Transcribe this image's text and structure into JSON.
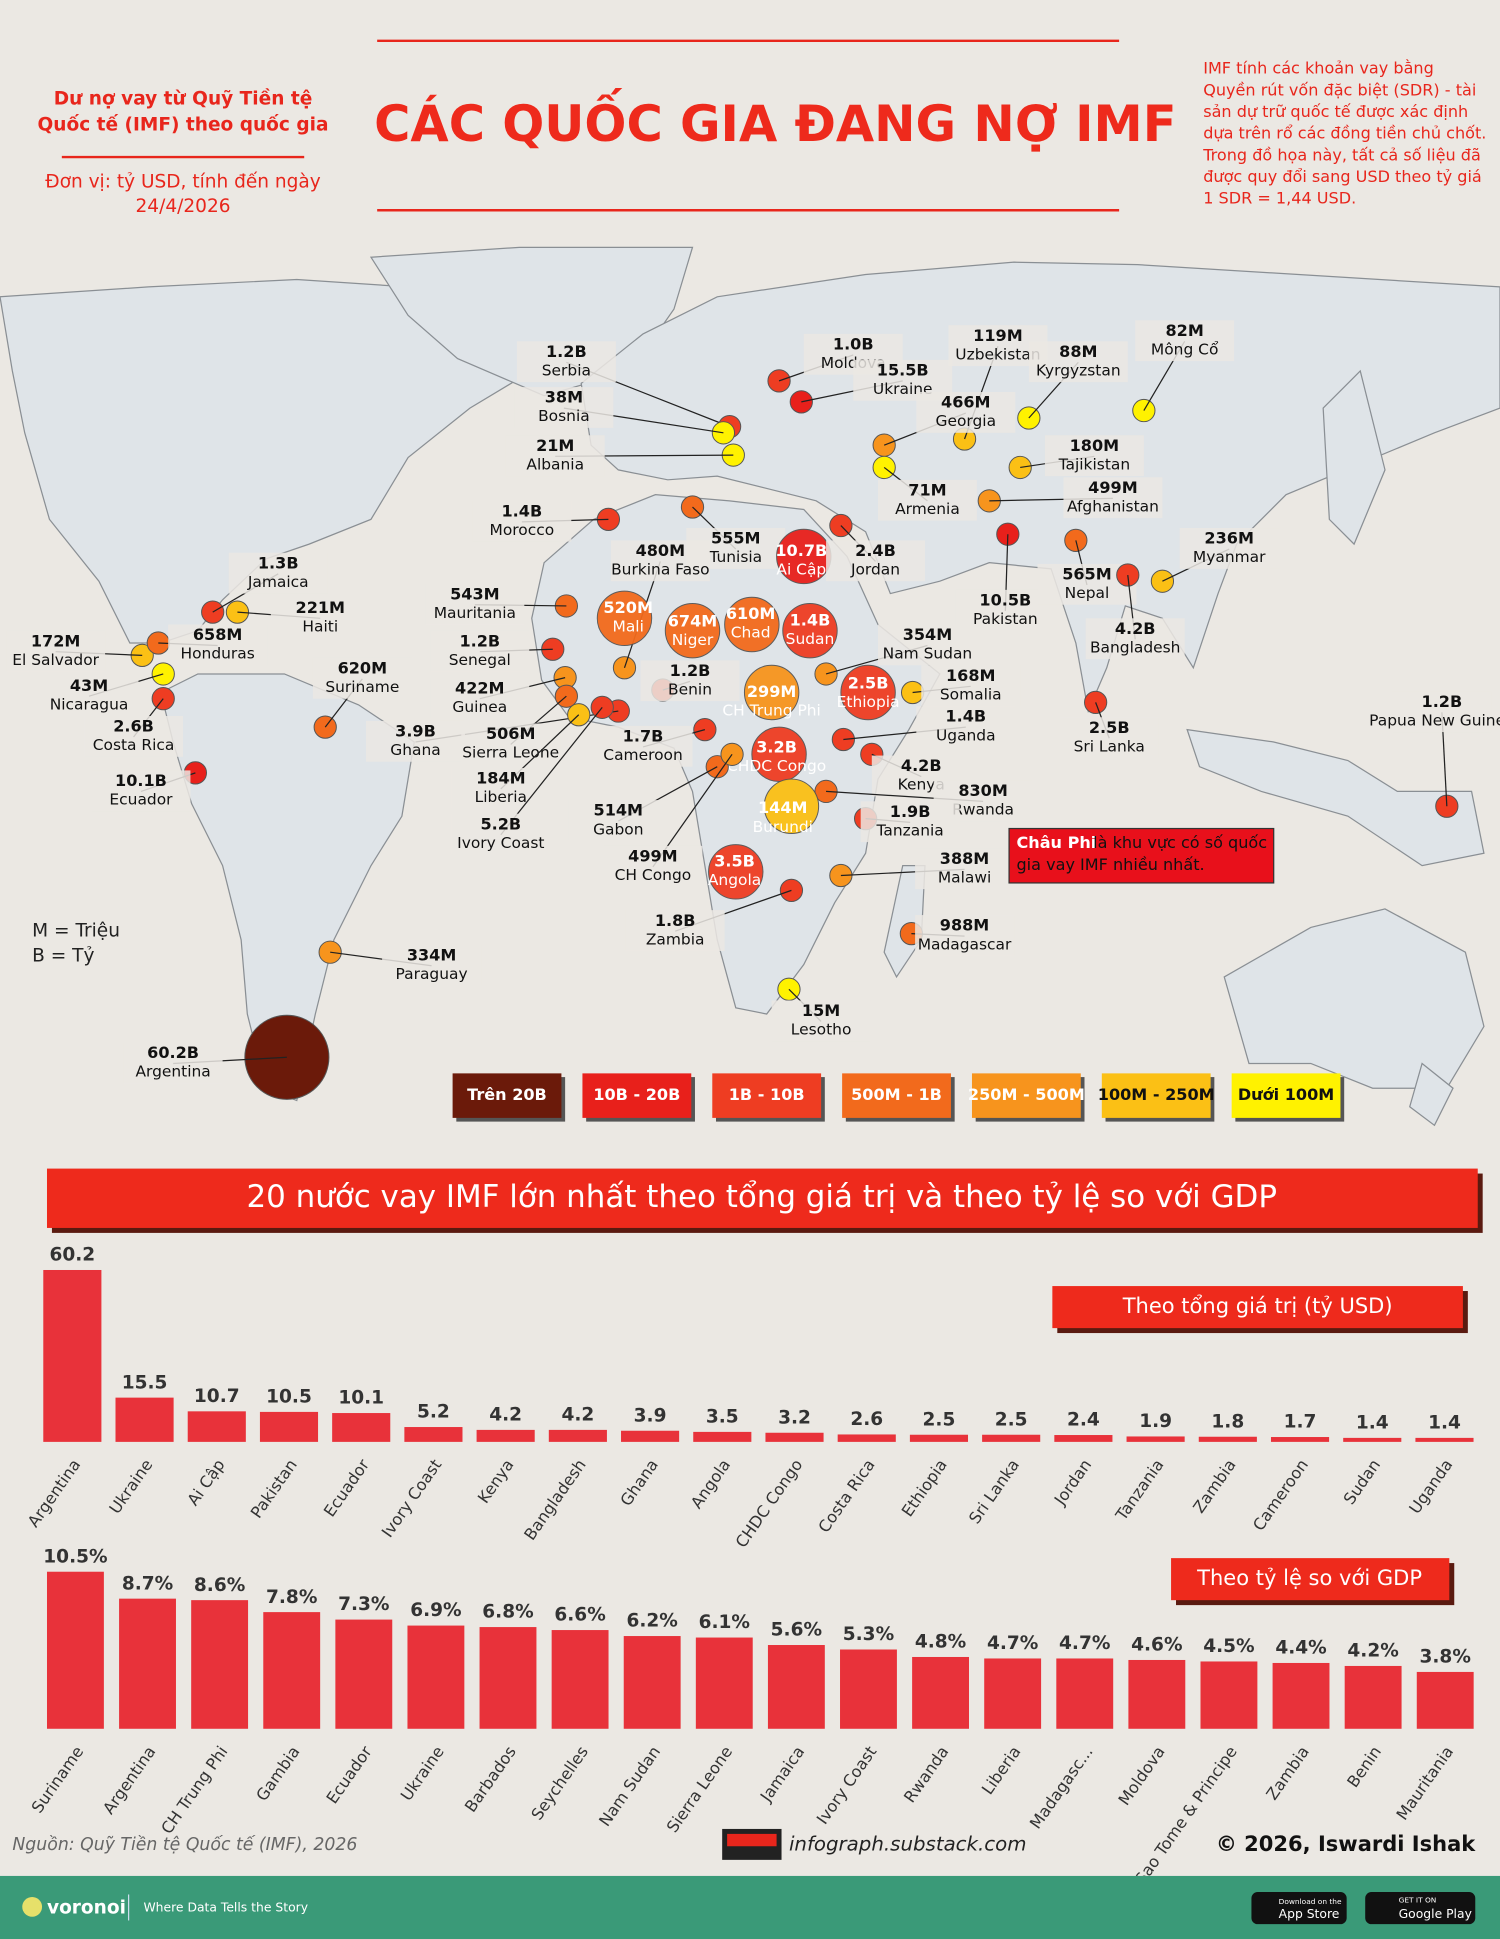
{
  "header": {
    "subtitle": [
      "Dư nợ vay từ Quỹ Tiền tệ",
      "Quốc tế (IMF) theo quốc gia"
    ],
    "unit": [
      "Đơn vị: tỷ USD, tính đến ngày",
      "24/4/2026"
    ],
    "title": "CÁC QUỐC GIA ĐANG NỢ IMF",
    "note": [
      "IMF tính các khoản vay bằng",
      "Quyền rút vốn đặc biệt (SDR) - tài",
      "sản dự trữ quốc tế được xác định",
      "dựa trên rổ các đồng tiền chủ chốt.",
      "Trong đồ họa này, tất cả số liệu đã",
      "được quy đổi sang USD theo tỷ giá",
      "1 SDR = 1,44 USD."
    ]
  },
  "map": {
    "labels": [
      {
        "value": "1.2B",
        "name": "Serbia",
        "color": "#ee3d22"
      },
      {
        "value": "38M",
        "name": "Bosnia",
        "color": "#fff200"
      },
      {
        "value": "21M",
        "name": "Albania",
        "color": "#fff200"
      },
      {
        "value": "1.0B",
        "name": "Moldova",
        "color": "#ee3d22"
      },
      {
        "value": "15.5B",
        "name": "Ukraine",
        "color": "#e8201b"
      },
      {
        "value": "119M",
        "name": "Uzbekistan",
        "color": "#fbc015"
      },
      {
        "value": "88M",
        "name": "Kyrgyzstan",
        "color": "#fff200"
      },
      {
        "value": "82M",
        "name": "Mông Cổ",
        "color": "#fff200"
      },
      {
        "value": "466M",
        "name": "Georgia",
        "color": "#f7941d"
      },
      {
        "value": "180M",
        "name": "Tajikistan",
        "color": "#fbc015"
      },
      {
        "value": "499M",
        "name": "Afghanistan",
        "color": "#f7941d"
      },
      {
        "value": "71M",
        "name": "Armenia",
        "color": "#fff200"
      },
      {
        "value": "1.4B",
        "name": "Morocco",
        "color": "#ee3d22"
      },
      {
        "value": "555M",
        "name": "Tunisia",
        "color": "#f26a1c"
      },
      {
        "value": "480M",
        "name": "Burkina Faso",
        "color": "#f7941d"
      },
      {
        "value": "10.7B",
        "name": "Ai Cập",
        "color": "#e8201b"
      },
      {
        "value": "2.4B",
        "name": "Jordan",
        "color": "#ee3d22"
      },
      {
        "value": "10.5B",
        "name": "Pakistan",
        "color": "#e8201b"
      },
      {
        "value": "565M",
        "name": "Nepal",
        "color": "#f26a1c"
      },
      {
        "value": "236M",
        "name": "Myanmar",
        "color": "#fbc015"
      },
      {
        "value": "4.2B",
        "name": "Bangladesh",
        "color": "#ee3d22"
      },
      {
        "value": "2.5B",
        "name": "Sri Lanka",
        "color": "#ee3d22"
      },
      {
        "value": "1.3B",
        "name": "Jamaica",
        "color": "#ee3d22"
      },
      {
        "value": "221M",
        "name": "Haiti",
        "color": "#fbc015"
      },
      {
        "value": "543M",
        "name": "Mauritania",
        "color": "#f26a1c"
      },
      {
        "value": "520M",
        "name": "Mali",
        "color": "#f26a1c"
      },
      {
        "value": "674M",
        "name": "Niger",
        "color": "#f26a1c"
      },
      {
        "value": "610M",
        "name": "Chad",
        "color": "#f26a1c"
      },
      {
        "value": "1.4B",
        "name": "Sudan",
        "color": "#ee3d22"
      },
      {
        "value": "354M",
        "name": "Nam Sudan",
        "color": "#f7941d"
      },
      {
        "value": "172M",
        "name": "El Salvador",
        "color": "#fbc015"
      },
      {
        "value": "658M",
        "name": "Honduras",
        "color": "#f26a1c"
      },
      {
        "value": "1.2B",
        "name": "Senegal",
        "color": "#ee3d22"
      },
      {
        "value": "1.2B",
        "name": "Benin",
        "color": "#ee3d22"
      },
      {
        "value": "2.5B",
        "name": "Ethiopia",
        "color": "#ee3d22"
      },
      {
        "value": "168M",
        "name": "Somalia",
        "color": "#fbc015"
      },
      {
        "value": "43M",
        "name": "Nicaragua",
        "color": "#fff200"
      },
      {
        "value": "620M",
        "name": "Suriname",
        "color": "#f26a1c"
      },
      {
        "value": "422M",
        "name": "Guinea",
        "color": "#f7941d"
      },
      {
        "value": "299M",
        "name": "CH Trung Phi",
        "color": "#f7941d"
      },
      {
        "value": "1.4B",
        "name": "Uganda",
        "color": "#ee3d22"
      },
      {
        "value": "3.9B",
        "name": "Ghana",
        "color": "#ee3d22"
      },
      {
        "value": "506M",
        "name": "Sierra Leone",
        "color": "#f26a1c"
      },
      {
        "value": "1.7B",
        "name": "Cameroon",
        "color": "#ee3d22"
      },
      {
        "value": "3.2B",
        "name": "CHDC Congo",
        "color": "#ee3d22"
      },
      {
        "value": "4.2B",
        "name": "Kenya",
        "color": "#ee3d22"
      },
      {
        "value": "2.6B",
        "name": "Costa Rica",
        "color": "#ee3d22"
      },
      {
        "value": "184M",
        "name": "Liberia",
        "color": "#fbc015"
      },
      {
        "value": "830M",
        "name": "Rwanda",
        "color": "#f26a1c"
      },
      {
        "value": "10.1B",
        "name": "Ecuador",
        "color": "#e8201b"
      },
      {
        "value": "1.2B",
        "name": "Papua New Guinea",
        "color": "#ee3d22"
      },
      {
        "value": "514M",
        "name": "Gabon",
        "color": "#f26a1c"
      },
      {
        "value": "144M",
        "name": "Burundi",
        "color": "#fbc015"
      },
      {
        "value": "1.9B",
        "name": "Tanzania",
        "color": "#ee3d22"
      },
      {
        "value": "5.2B",
        "name": "Ivory Coast",
        "color": "#ee3d22"
      },
      {
        "value": "499M",
        "name": "CH Congo",
        "color": "#f7941d"
      },
      {
        "value": "3.5B",
        "name": "Angola",
        "color": "#ee3d22"
      },
      {
        "value": "388M",
        "name": "Malawi",
        "color": "#f7941d"
      },
      {
        "value": "1.8B",
        "name": "Zambia",
        "color": "#ee3d22"
      },
      {
        "value": "988M",
        "name": "Madagascar",
        "color": "#f26a1c"
      },
      {
        "value": "334M",
        "name": "Paraguay",
        "color": "#f7941d"
      },
      {
        "value": "60.2B",
        "name": "Argentina",
        "color": "#6b1a0a"
      },
      {
        "value": "15M",
        "name": "Lesotho",
        "color": "#fff200"
      }
    ],
    "unit_notes": [
      "M = Triệu",
      "B = Tỷ"
    ],
    "legend": [
      {
        "label": "Trên 20B",
        "color": "#6b1a0a"
      },
      {
        "label": "10B - 20B",
        "color": "#e8201b"
      },
      {
        "label": "1B - 10B",
        "color": "#ee3d22"
      },
      {
        "label": "500M - 1B",
        "color": "#f26a1c"
      },
      {
        "label": "250M - 500M",
        "color": "#f7941d"
      },
      {
        "label": "100M - 250M",
        "color": "#fbc015"
      },
      {
        "label": "Dưới 100M",
        "color": "#fff200"
      }
    ],
    "callout": {
      "highlight": "Châu Phi",
      "text": [
        "là khu vực có số quốc",
        "gia vay IMF nhiều nhất."
      ]
    }
  },
  "charts_title": "20 nước vay IMF lớn nhất theo tổng giá trị và theo tỷ lệ so với GDP",
  "chart_data": [
    {
      "type": "bar",
      "title": "Theo tổng giá trị (tỷ USD)",
      "color": "#e8323a",
      "categories": [
        "Argentina",
        "Ukraine",
        "Ai Cập",
        "Pakistan",
        "Ecuador",
        "Ivory Coast",
        "Kenya",
        "Bangladesh",
        "Ghana",
        "Angola",
        "CHDC Congo",
        "Costa Rica",
        "Ethiopia",
        "Sri Lanka",
        "Jordan",
        "Tanzania",
        "Zambia",
        "Cameroon",
        "Sudan",
        "Uganda"
      ],
      "values": [
        60.2,
        15.5,
        10.7,
        10.5,
        10.1,
        5.2,
        4.2,
        4.2,
        3.9,
        3.5,
        3.2,
        2.6,
        2.5,
        2.5,
        2.4,
        1.9,
        1.8,
        1.7,
        1.4,
        1.4
      ]
    },
    {
      "type": "bar",
      "title": "Theo tỷ lệ so với GDP",
      "color": "#e8323a",
      "categories": [
        "Suriname",
        "Argentina",
        "CH Trung Phi",
        "Gambia",
        "Ecuador",
        "Ukraine",
        "Barbados",
        "Seychelles",
        "Nam Sudan",
        "Sierra Leone",
        "Jamaica",
        "Ivory Coast",
        "Rwanda",
        "Liberia",
        "Madagasc...",
        "Moldova",
        "Sao Tome & Principe",
        "Zambia",
        "Benin",
        "Mauritania"
      ],
      "values": [
        10.5,
        8.7,
        8.6,
        7.8,
        7.3,
        6.9,
        6.8,
        6.6,
        6.2,
        6.1,
        5.6,
        5.3,
        4.8,
        4.7,
        4.7,
        4.6,
        4.5,
        4.4,
        4.2,
        3.8
      ],
      "value_labels": [
        "10.5%",
        "8.7%",
        "8.6%",
        "7.8%",
        "7.3%",
        "6.9%",
        "6.8%",
        "6.6%",
        "6.2%",
        "6.1%",
        "5.6%",
        "5.3%",
        "4.8%",
        "4.7%",
        "4.7%",
        "4.6%",
        "4.5%",
        "4.4%",
        "4.2%",
        "3.8%"
      ]
    }
  ],
  "footer": {
    "source": "Nguồn: Quỹ Tiền tệ Quốc tế (IMF), 2026",
    "site": "infograph.substack.com",
    "copyright": "© 2026, Iswardi Ishak",
    "brand": "voronoi",
    "tagline": "Where Data Tells the Story",
    "app_store": [
      "Download on the",
      "App Store"
    ],
    "google_play": [
      "GET IT ON",
      "Google Play"
    ]
  }
}
